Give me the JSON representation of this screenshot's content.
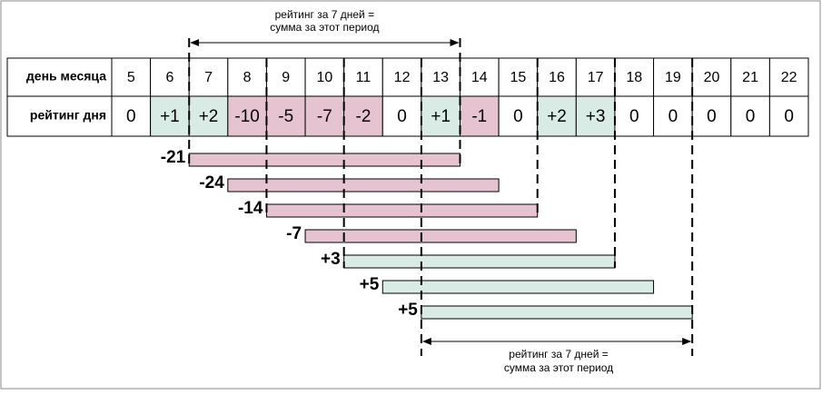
{
  "table": {
    "row_headers": [
      "день месяца",
      "рейтинг дня"
    ],
    "days": [
      "5",
      "6",
      "7",
      "8",
      "9",
      "10",
      "11",
      "12",
      "13",
      "14",
      "15",
      "16",
      "17",
      "18",
      "19",
      "20",
      "21",
      "22"
    ],
    "ratings": [
      "0",
      "+1",
      "+2",
      "-10",
      "-5",
      "-7",
      "-2",
      "0",
      "+1",
      "-1",
      "0",
      "+2",
      "+3",
      "0",
      "0",
      "0",
      "0",
      "0"
    ],
    "cell_colors": [
      "#ffffff",
      "#d8ebe4",
      "#d8ebe4",
      "#e6c3d1",
      "#e6c3d1",
      "#e6c3d1",
      "#e6c3d1",
      "#ffffff",
      "#d8ebe4",
      "#e6c3d1",
      "#ffffff",
      "#d8ebe4",
      "#d8ebe4",
      "#ffffff",
      "#ffffff",
      "#ffffff",
      "#ffffff",
      "#ffffff"
    ]
  },
  "windows": [
    {
      "label": "-21",
      "color": "#e6c3d1"
    },
    {
      "label": "-24",
      "color": "#e6c3d1"
    },
    {
      "label": "-14",
      "color": "#e6c3d1"
    },
    {
      "label": "-7",
      "color": "#e6c3d1"
    },
    {
      "label": "+3",
      "color": "#d8ebe4"
    },
    {
      "label": "+5",
      "color": "#d8ebe4"
    },
    {
      "label": "+5",
      "color": "#d8ebe4"
    }
  ],
  "annotations": {
    "top": [
      "рейтинг за 7 дней =",
      "сумма за этот период"
    ],
    "bottom": [
      "рейтинг за 7 дней =",
      "сумма за этот период"
    ]
  }
}
